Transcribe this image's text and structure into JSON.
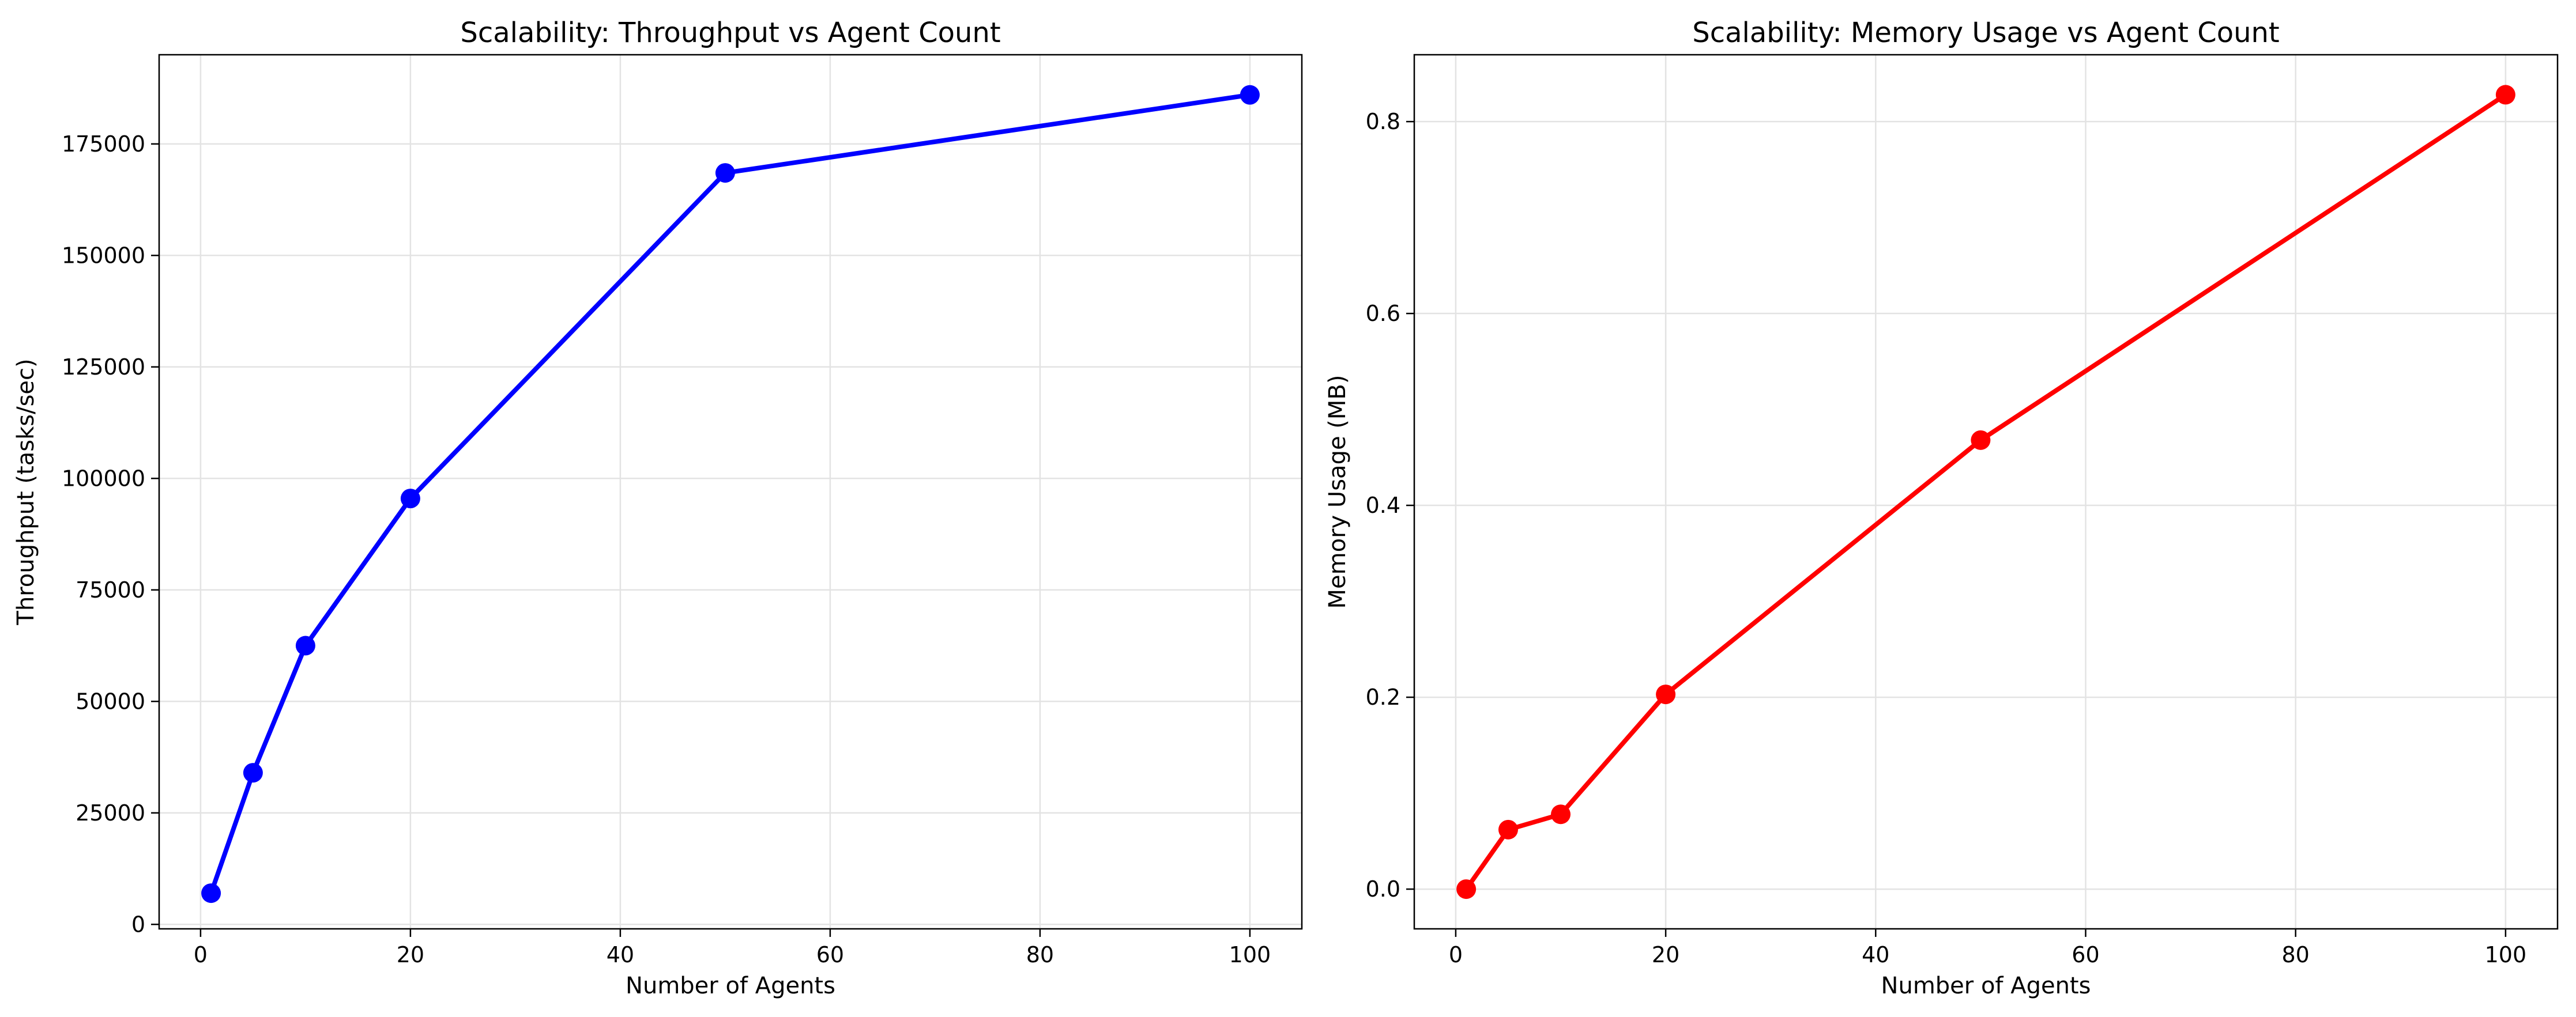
{
  "chart_data": [
    {
      "type": "line",
      "title": "Scalability: Throughput vs Agent Count",
      "xlabel": "Number of Agents",
      "ylabel": "Throughput (tasks/sec)",
      "xlim": [
        -3.95,
        104.95
      ],
      "ylim": [
        -1000,
        195000
      ],
      "xticks": [
        0,
        20,
        40,
        60,
        80,
        100
      ],
      "yticks": [
        0,
        25000,
        50000,
        75000,
        100000,
        125000,
        150000,
        175000
      ],
      "xtick_labels": [
        "0",
        "20",
        "40",
        "60",
        "80",
        "100"
      ],
      "ytick_labels": [
        "0",
        "25000",
        "50000",
        "75000",
        "100000",
        "125000",
        "150000",
        "175000"
      ],
      "grid": true,
      "color": "#0000ff",
      "marker": "circle",
      "x": [
        1,
        5,
        10,
        20,
        50,
        100
      ],
      "y": [
        7000,
        34000,
        62500,
        95500,
        168500,
        186000
      ]
    },
    {
      "type": "line",
      "title": "Scalability: Memory Usage vs Agent Count",
      "xlabel": "Number of Agents",
      "ylabel": "Memory Usage (MB)",
      "xlim": [
        -3.95,
        104.95
      ],
      "ylim": [
        -0.0414,
        0.8697
      ],
      "xticks": [
        0,
        20,
        40,
        60,
        80,
        100
      ],
      "yticks": [
        0.0,
        0.2,
        0.4,
        0.6,
        0.8
      ],
      "xtick_labels": [
        "0",
        "20",
        "40",
        "60",
        "80",
        "100"
      ],
      "ytick_labels": [
        "0.0",
        "0.2",
        "0.4",
        "0.6",
        "0.8"
      ],
      "grid": true,
      "color": "#ff0000",
      "marker": "circle",
      "x": [
        1,
        5,
        10,
        20,
        50,
        100
      ],
      "y": [
        0.0,
        0.062,
        0.078,
        0.203,
        0.468,
        0.828
      ]
    }
  ]
}
